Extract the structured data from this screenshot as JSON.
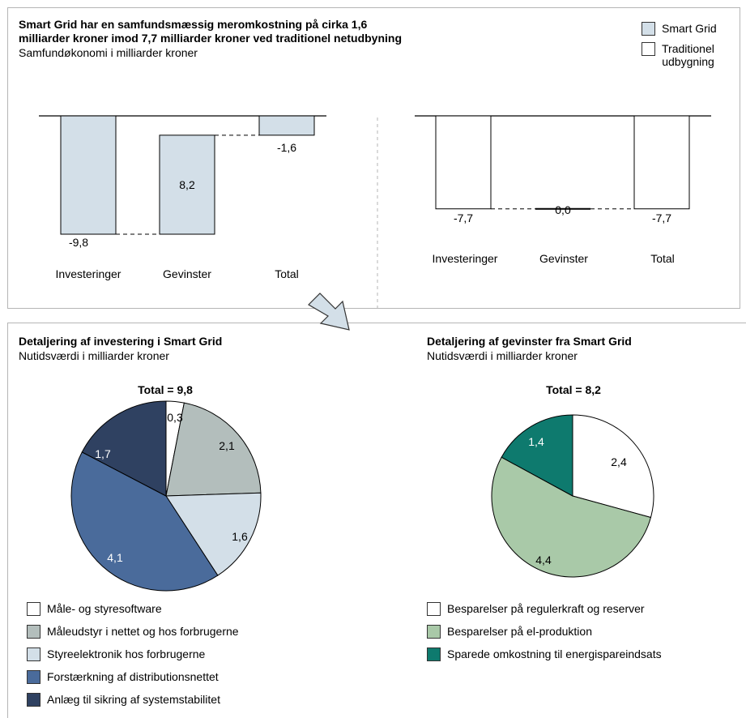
{
  "top": {
    "title_line1": "Smart Grid har en samfundsmæssig meromkostning på cirka 1,6",
    "title_line2": "milliarder kroner imod 7,7 milliarder kroner ved traditionel netudbyning",
    "subtitle": "Samfundøkonomi i milliarder kroner",
    "legend": [
      {
        "label": "Smart Grid",
        "color": "#d3dfe8"
      },
      {
        "label_line1": "Traditionel",
        "label_line2": "udbygning",
        "color": "#ffffff"
      }
    ]
  },
  "pie_left": {
    "title": "Detaljering af investering i Smart Grid",
    "subtitle": "Nutidsværdi i milliarder kroner",
    "total_label": "Total = 9,8"
  },
  "pie_right": {
    "title": "Detaljering af gevinster fra Smart Grid",
    "subtitle": "Nutidsværdi i milliarder kroner",
    "total_label": "Total = 8,2"
  },
  "icons": {
    "arrow": "down-right-arrow-icon"
  },
  "chart_data": [
    {
      "type": "bar",
      "variant": "waterfall",
      "series_name": "Smart Grid",
      "categories": [
        "Investeringer",
        "Gevinster",
        "Total"
      ],
      "values": [
        -9.8,
        8.2,
        -1.6
      ],
      "value_labels": [
        "-9,8",
        "8,2",
        "-1,6"
      ],
      "fill": "#d3dfe8",
      "ylim": [
        -9.8,
        0
      ]
    },
    {
      "type": "bar",
      "variant": "waterfall",
      "series_name": "Traditionel udbygning",
      "categories": [
        "Investeringer",
        "Gevinster",
        "Total"
      ],
      "values": [
        -7.7,
        0.0,
        -7.7
      ],
      "value_labels": [
        "-7,7",
        "0,0",
        "-7,7"
      ],
      "fill": "#ffffff",
      "ylim": [
        -9.8,
        0
      ]
    },
    {
      "type": "pie",
      "title": "Total = 9,8",
      "slices": [
        {
          "label": "Måle- og styresoftware",
          "value": 0.3,
          "value_label": "0,3",
          "color": "#ffffff",
          "text_color": "#000000"
        },
        {
          "label": "Måleudstyr i nettet og hos forbrugerne",
          "value": 2.1,
          "value_label": "2,1",
          "color": "#b3bebc",
          "text_color": "#000000"
        },
        {
          "label": "Styreelektronik hos forbrugerne",
          "value": 1.6,
          "value_label": "1,6",
          "color": "#d3dfe8",
          "text_color": "#000000"
        },
        {
          "label": "Forstærkning af distributionsnettet",
          "value": 4.1,
          "value_label": "4,1",
          "color": "#4a6b9b",
          "text_color": "#ffffff"
        },
        {
          "label": "Anlæg til sikring af systemstabilitet",
          "value": 1.7,
          "value_label": "1,7",
          "color": "#2f4161",
          "text_color": "#ffffff"
        }
      ]
    },
    {
      "type": "pie",
      "title": "Total = 8,2",
      "slices": [
        {
          "label": "Besparelser på regulerkraft og reserver",
          "value": 2.4,
          "value_label": "2,4",
          "color": "#ffffff",
          "text_color": "#000000"
        },
        {
          "label": "Besparelser på el-produktion",
          "value": 4.4,
          "value_label": "4,4",
          "color": "#a9c9a8",
          "text_color": "#000000"
        },
        {
          "label": "Sparede omkostning til energispareindsats",
          "value": 1.4,
          "value_label": "1,4",
          "color": "#0e7a6e",
          "text_color": "#ffffff"
        }
      ]
    }
  ]
}
